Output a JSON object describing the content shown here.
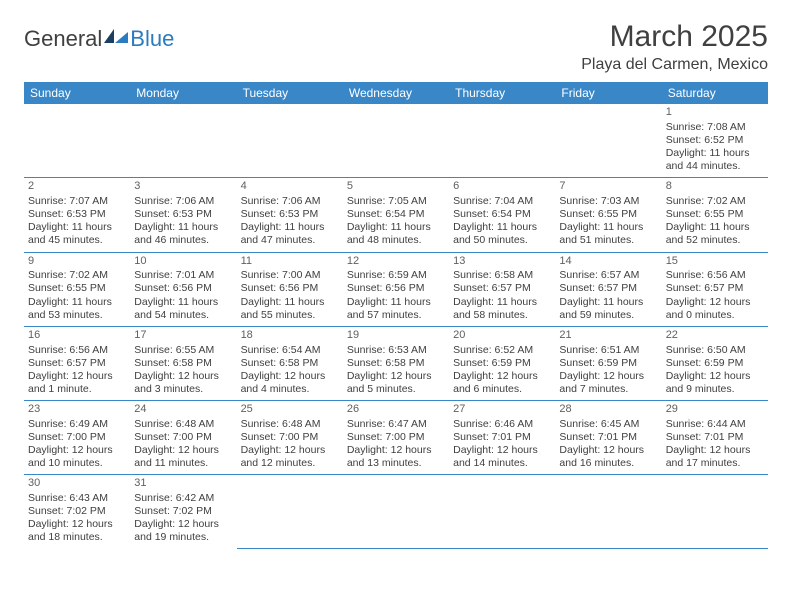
{
  "logo": {
    "part1": "General",
    "part2": "Blue"
  },
  "title": "March 2025",
  "location": "Playa del Carmen, Mexico",
  "weekdays": [
    "Sunday",
    "Monday",
    "Tuesday",
    "Wednesday",
    "Thursday",
    "Friday",
    "Saturday"
  ],
  "colors": {
    "header_bg": "#3a87c8",
    "header_fg": "#ffffff",
    "rule": "#3a87c8",
    "text": "#404040"
  },
  "weeks": [
    [
      null,
      null,
      null,
      null,
      null,
      null,
      {
        "n": "1",
        "sr": "Sunrise: 7:08 AM",
        "ss": "Sunset: 6:52 PM",
        "d1": "Daylight: 11 hours",
        "d2": "and 44 minutes."
      }
    ],
    [
      {
        "n": "2",
        "sr": "Sunrise: 7:07 AM",
        "ss": "Sunset: 6:53 PM",
        "d1": "Daylight: 11 hours",
        "d2": "and 45 minutes."
      },
      {
        "n": "3",
        "sr": "Sunrise: 7:06 AM",
        "ss": "Sunset: 6:53 PM",
        "d1": "Daylight: 11 hours",
        "d2": "and 46 minutes."
      },
      {
        "n": "4",
        "sr": "Sunrise: 7:06 AM",
        "ss": "Sunset: 6:53 PM",
        "d1": "Daylight: 11 hours",
        "d2": "and 47 minutes."
      },
      {
        "n": "5",
        "sr": "Sunrise: 7:05 AM",
        "ss": "Sunset: 6:54 PM",
        "d1": "Daylight: 11 hours",
        "d2": "and 48 minutes."
      },
      {
        "n": "6",
        "sr": "Sunrise: 7:04 AM",
        "ss": "Sunset: 6:54 PM",
        "d1": "Daylight: 11 hours",
        "d2": "and 50 minutes."
      },
      {
        "n": "7",
        "sr": "Sunrise: 7:03 AM",
        "ss": "Sunset: 6:55 PM",
        "d1": "Daylight: 11 hours",
        "d2": "and 51 minutes."
      },
      {
        "n": "8",
        "sr": "Sunrise: 7:02 AM",
        "ss": "Sunset: 6:55 PM",
        "d1": "Daylight: 11 hours",
        "d2": "and 52 minutes."
      }
    ],
    [
      {
        "n": "9",
        "sr": "Sunrise: 7:02 AM",
        "ss": "Sunset: 6:55 PM",
        "d1": "Daylight: 11 hours",
        "d2": "and 53 minutes."
      },
      {
        "n": "10",
        "sr": "Sunrise: 7:01 AM",
        "ss": "Sunset: 6:56 PM",
        "d1": "Daylight: 11 hours",
        "d2": "and 54 minutes."
      },
      {
        "n": "11",
        "sr": "Sunrise: 7:00 AM",
        "ss": "Sunset: 6:56 PM",
        "d1": "Daylight: 11 hours",
        "d2": "and 55 minutes."
      },
      {
        "n": "12",
        "sr": "Sunrise: 6:59 AM",
        "ss": "Sunset: 6:56 PM",
        "d1": "Daylight: 11 hours",
        "d2": "and 57 minutes."
      },
      {
        "n": "13",
        "sr": "Sunrise: 6:58 AM",
        "ss": "Sunset: 6:57 PM",
        "d1": "Daylight: 11 hours",
        "d2": "and 58 minutes."
      },
      {
        "n": "14",
        "sr": "Sunrise: 6:57 AM",
        "ss": "Sunset: 6:57 PM",
        "d1": "Daylight: 11 hours",
        "d2": "and 59 minutes."
      },
      {
        "n": "15",
        "sr": "Sunrise: 6:56 AM",
        "ss": "Sunset: 6:57 PM",
        "d1": "Daylight: 12 hours",
        "d2": "and 0 minutes."
      }
    ],
    [
      {
        "n": "16",
        "sr": "Sunrise: 6:56 AM",
        "ss": "Sunset: 6:57 PM",
        "d1": "Daylight: 12 hours",
        "d2": "and 1 minute."
      },
      {
        "n": "17",
        "sr": "Sunrise: 6:55 AM",
        "ss": "Sunset: 6:58 PM",
        "d1": "Daylight: 12 hours",
        "d2": "and 3 minutes."
      },
      {
        "n": "18",
        "sr": "Sunrise: 6:54 AM",
        "ss": "Sunset: 6:58 PM",
        "d1": "Daylight: 12 hours",
        "d2": "and 4 minutes."
      },
      {
        "n": "19",
        "sr": "Sunrise: 6:53 AM",
        "ss": "Sunset: 6:58 PM",
        "d1": "Daylight: 12 hours",
        "d2": "and 5 minutes."
      },
      {
        "n": "20",
        "sr": "Sunrise: 6:52 AM",
        "ss": "Sunset: 6:59 PM",
        "d1": "Daylight: 12 hours",
        "d2": "and 6 minutes."
      },
      {
        "n": "21",
        "sr": "Sunrise: 6:51 AM",
        "ss": "Sunset: 6:59 PM",
        "d1": "Daylight: 12 hours",
        "d2": "and 7 minutes."
      },
      {
        "n": "22",
        "sr": "Sunrise: 6:50 AM",
        "ss": "Sunset: 6:59 PM",
        "d1": "Daylight: 12 hours",
        "d2": "and 9 minutes."
      }
    ],
    [
      {
        "n": "23",
        "sr": "Sunrise: 6:49 AM",
        "ss": "Sunset: 7:00 PM",
        "d1": "Daylight: 12 hours",
        "d2": "and 10 minutes."
      },
      {
        "n": "24",
        "sr": "Sunrise: 6:48 AM",
        "ss": "Sunset: 7:00 PM",
        "d1": "Daylight: 12 hours",
        "d2": "and 11 minutes."
      },
      {
        "n": "25",
        "sr": "Sunrise: 6:48 AM",
        "ss": "Sunset: 7:00 PM",
        "d1": "Daylight: 12 hours",
        "d2": "and 12 minutes."
      },
      {
        "n": "26",
        "sr": "Sunrise: 6:47 AM",
        "ss": "Sunset: 7:00 PM",
        "d1": "Daylight: 12 hours",
        "d2": "and 13 minutes."
      },
      {
        "n": "27",
        "sr": "Sunrise: 6:46 AM",
        "ss": "Sunset: 7:01 PM",
        "d1": "Daylight: 12 hours",
        "d2": "and 14 minutes."
      },
      {
        "n": "28",
        "sr": "Sunrise: 6:45 AM",
        "ss": "Sunset: 7:01 PM",
        "d1": "Daylight: 12 hours",
        "d2": "and 16 minutes."
      },
      {
        "n": "29",
        "sr": "Sunrise: 6:44 AM",
        "ss": "Sunset: 7:01 PM",
        "d1": "Daylight: 12 hours",
        "d2": "and 17 minutes."
      }
    ],
    [
      {
        "n": "30",
        "sr": "Sunrise: 6:43 AM",
        "ss": "Sunset: 7:02 PM",
        "d1": "Daylight: 12 hours",
        "d2": "and 18 minutes."
      },
      {
        "n": "31",
        "sr": "Sunrise: 6:42 AM",
        "ss": "Sunset: 7:02 PM",
        "d1": "Daylight: 12 hours",
        "d2": "and 19 minutes."
      },
      null,
      null,
      null,
      null,
      null
    ]
  ]
}
